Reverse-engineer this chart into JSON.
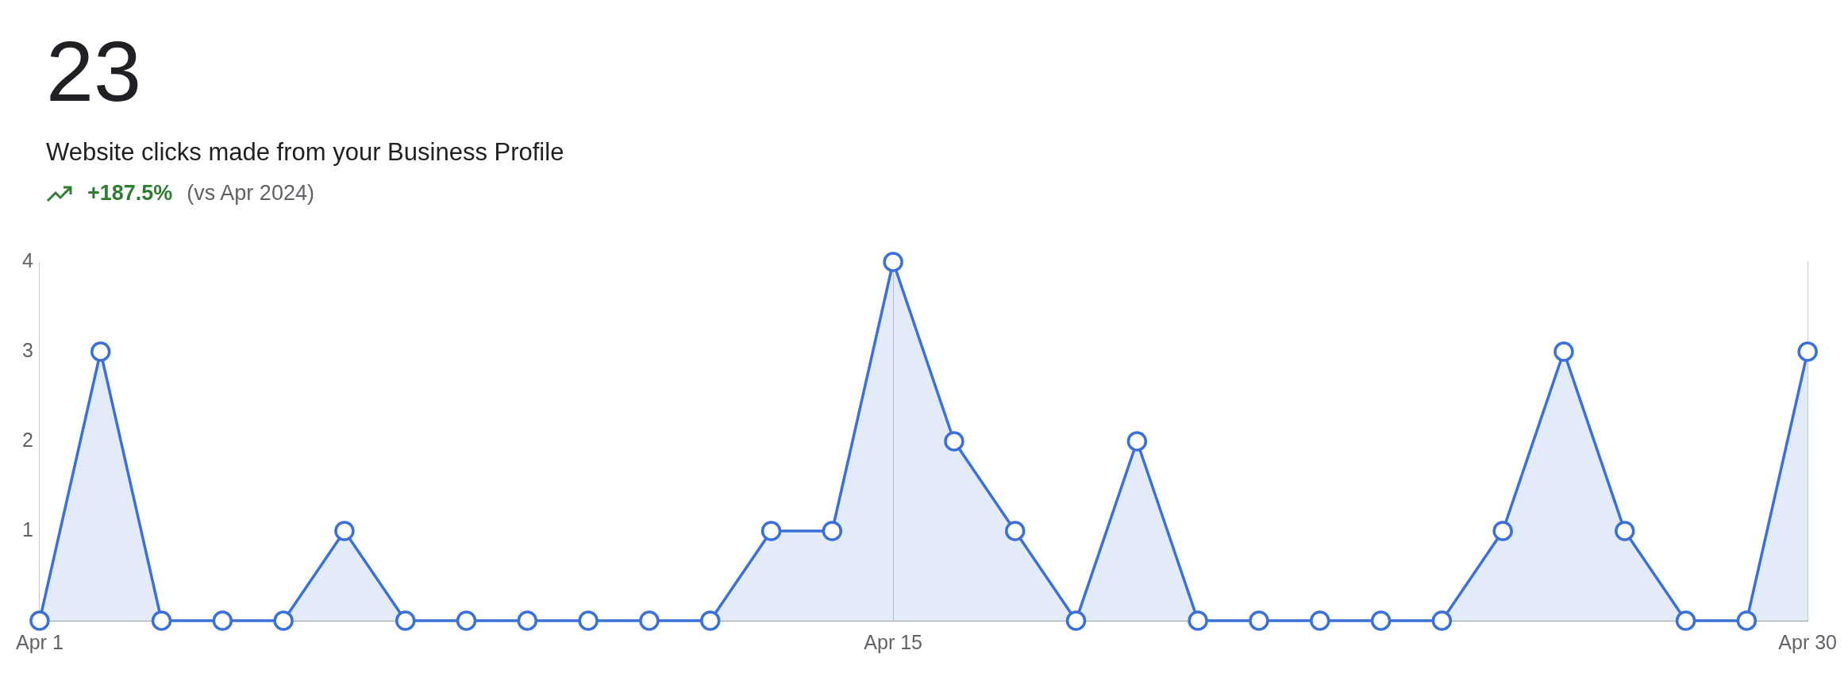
{
  "chart_data": {
    "type": "area",
    "title": "23",
    "subtitle": "Website clicks made from your Business Profile",
    "annotations": [
      "+187.5%",
      "(vs Apr 2024)"
    ],
    "categories": [
      "Apr 1",
      null,
      null,
      null,
      null,
      null,
      null,
      null,
      null,
      null,
      null,
      null,
      null,
      null,
      "Apr 15",
      null,
      null,
      null,
      null,
      null,
      null,
      null,
      null,
      null,
      null,
      null,
      null,
      null,
      null,
      "Apr 30"
    ],
    "series": [
      {
        "color": "#3a70d8",
        "values": [
          0,
          3,
          0,
          0,
          0,
          1,
          0,
          0,
          0,
          0,
          0,
          0,
          1,
          1,
          4,
          2,
          1,
          0,
          2,
          0,
          0,
          0,
          0,
          0,
          1,
          3,
          1,
          0,
          0,
          3
        ]
      }
    ],
    "ylim": [
      0,
      4
    ],
    "yticks": [
      1,
      2,
      3,
      4
    ],
    "grid": "x",
    "legend": false,
    "marker": "circle",
    "line_style": "solid"
  }
}
